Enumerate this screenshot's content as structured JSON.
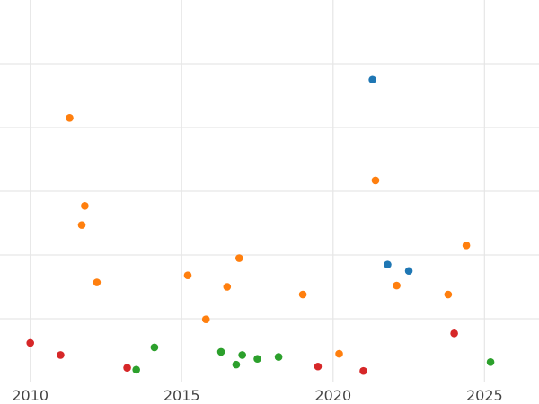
{
  "chart_data": {
    "type": "scatter",
    "title": "",
    "xlabel": "",
    "ylabel": "",
    "xlim": [
      2009.0,
      2026.8
    ],
    "ylim": [
      0,
      6
    ],
    "x_ticks": [
      2010,
      2015,
      2020,
      2025
    ],
    "x_tick_labels": [
      "2010",
      "2015",
      "2020",
      "2025"
    ],
    "y_gridlines": [
      1,
      2,
      3,
      4,
      5
    ],
    "y_tick_labels_visible": false,
    "grid": true,
    "legend": "none",
    "series": [
      {
        "color": "#1f77b4",
        "points": [
          {
            "x": 2021.3,
            "y": 4.75
          },
          {
            "x": 2021.8,
            "y": 1.85
          },
          {
            "x": 2022.5,
            "y": 1.75
          }
        ]
      },
      {
        "color": "#ff7f0e",
        "points": [
          {
            "x": 2011.3,
            "y": 4.15
          },
          {
            "x": 2011.8,
            "y": 2.77
          },
          {
            "x": 2011.7,
            "y": 2.47
          },
          {
            "x": 2012.2,
            "y": 1.57
          },
          {
            "x": 2015.2,
            "y": 1.68
          },
          {
            "x": 2015.8,
            "y": 0.99
          },
          {
            "x": 2016.5,
            "y": 1.5
          },
          {
            "x": 2016.9,
            "y": 1.95
          },
          {
            "x": 2019.0,
            "y": 1.38
          },
          {
            "x": 2020.2,
            "y": 0.45
          },
          {
            "x": 2021.4,
            "y": 3.17
          },
          {
            "x": 2022.1,
            "y": 1.52
          },
          {
            "x": 2023.8,
            "y": 1.38
          },
          {
            "x": 2024.4,
            "y": 2.15
          }
        ]
      },
      {
        "color": "#2ca02c",
        "points": [
          {
            "x": 2013.5,
            "y": 0.2
          },
          {
            "x": 2014.1,
            "y": 0.55
          },
          {
            "x": 2016.3,
            "y": 0.48
          },
          {
            "x": 2016.8,
            "y": 0.28
          },
          {
            "x": 2017.0,
            "y": 0.43
          },
          {
            "x": 2017.5,
            "y": 0.37
          },
          {
            "x": 2018.2,
            "y": 0.4
          },
          {
            "x": 2025.2,
            "y": 0.32
          }
        ]
      },
      {
        "color": "#d62728",
        "points": [
          {
            "x": 2010.0,
            "y": 0.62
          },
          {
            "x": 2011.0,
            "y": 0.43
          },
          {
            "x": 2013.2,
            "y": 0.23
          },
          {
            "x": 2019.5,
            "y": 0.25
          },
          {
            "x": 2021.0,
            "y": 0.18
          },
          {
            "x": 2024.0,
            "y": 0.77
          }
        ]
      }
    ]
  }
}
